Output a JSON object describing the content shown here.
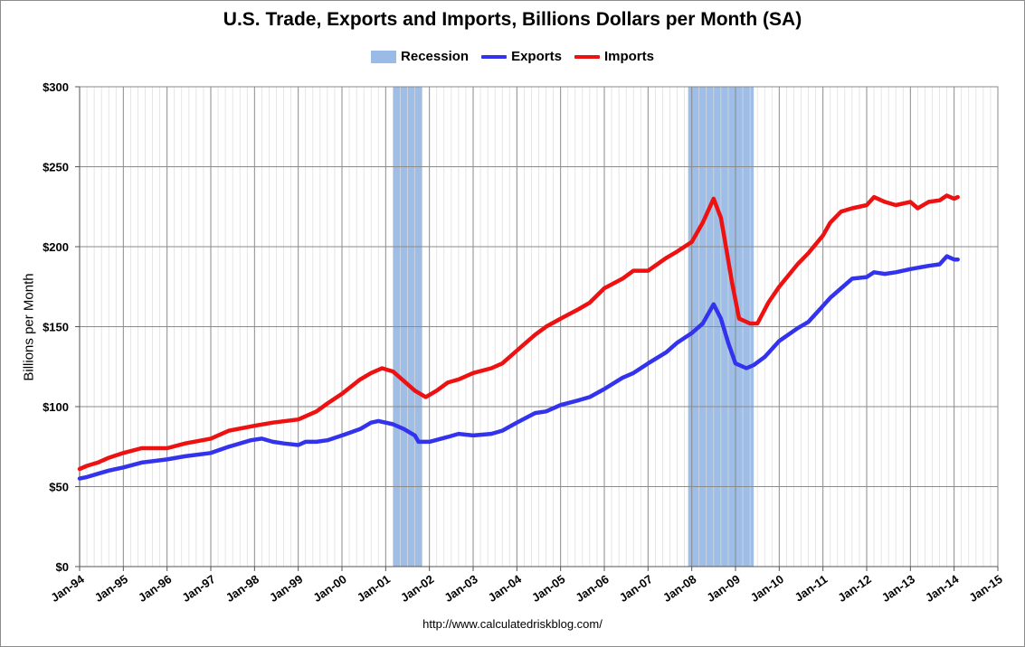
{
  "chart_data": {
    "type": "line",
    "title": "U.S. Trade, Exports and Imports, Billions Dollars per Month (SA)",
    "ylabel": "Billions per Month",
    "source": "http://www.calculatedriskblog.com/",
    "ylim": [
      0,
      300
    ],
    "yticks": [
      "$0",
      "$50",
      "$100",
      "$150",
      "$200",
      "$250",
      "$300"
    ],
    "ytick_values": [
      0,
      50,
      100,
      150,
      200,
      250,
      300
    ],
    "xlim": [
      "1994-01",
      "2015-01"
    ],
    "xticks": [
      "Jan-94",
      "Jan-95",
      "Jan-96",
      "Jan-97",
      "Jan-98",
      "Jan-99",
      "Jan-00",
      "Jan-01",
      "Jan-02",
      "Jan-03",
      "Jan-04",
      "Jan-05",
      "Jan-06",
      "Jan-07",
      "Jan-08",
      "Jan-09",
      "Jan-10",
      "Jan-11",
      "Jan-12",
      "Jan-13",
      "Jan-14",
      "Jan-15"
    ],
    "grid": true,
    "legend": "top",
    "recessions": [
      {
        "start": "2001-03",
        "end": "2001-11"
      },
      {
        "start": "2007-12",
        "end": "2009-06"
      }
    ],
    "series": [
      {
        "name": "Recession",
        "color": "#99bbe6"
      },
      {
        "name": "Exports",
        "color": "#3333ee",
        "points": [
          [
            "1994-01",
            55
          ],
          [
            "1994-03",
            56
          ],
          [
            "1994-06",
            58
          ],
          [
            "1994-09",
            60
          ],
          [
            "1995-01",
            62
          ],
          [
            "1995-06",
            65
          ],
          [
            "1996-01",
            67
          ],
          [
            "1996-06",
            69
          ],
          [
            "1997-01",
            71
          ],
          [
            "1997-06",
            75
          ],
          [
            "1997-12",
            79
          ],
          [
            "1998-03",
            80
          ],
          [
            "1998-06",
            78
          ],
          [
            "1998-09",
            77
          ],
          [
            "1999-01",
            76
          ],
          [
            "1999-03",
            78
          ],
          [
            "1999-06",
            78
          ],
          [
            "1999-09",
            79
          ],
          [
            "2000-01",
            82
          ],
          [
            "2000-06",
            86
          ],
          [
            "2000-09",
            90
          ],
          [
            "2000-11",
            91
          ],
          [
            "2001-01",
            90
          ],
          [
            "2001-03",
            89
          ],
          [
            "2001-06",
            86
          ],
          [
            "2001-09",
            82
          ],
          [
            "2001-10",
            78
          ],
          [
            "2002-01",
            78
          ],
          [
            "2002-06",
            81
          ],
          [
            "2002-09",
            83
          ],
          [
            "2003-01",
            82
          ],
          [
            "2003-06",
            83
          ],
          [
            "2003-09",
            85
          ],
          [
            "2004-01",
            90
          ],
          [
            "2004-06",
            96
          ],
          [
            "2004-09",
            97
          ],
          [
            "2005-01",
            101
          ],
          [
            "2005-06",
            104
          ],
          [
            "2005-09",
            106
          ],
          [
            "2006-01",
            111
          ],
          [
            "2006-06",
            118
          ],
          [
            "2006-09",
            121
          ],
          [
            "2007-01",
            127
          ],
          [
            "2007-06",
            134
          ],
          [
            "2007-09",
            140
          ],
          [
            "2008-01",
            146
          ],
          [
            "2008-04",
            152
          ],
          [
            "2008-07",
            164
          ],
          [
            "2008-09",
            155
          ],
          [
            "2008-11",
            140
          ],
          [
            "2009-01",
            127
          ],
          [
            "2009-04",
            124
          ],
          [
            "2009-06",
            126
          ],
          [
            "2009-09",
            131
          ],
          [
            "2010-01",
            141
          ],
          [
            "2010-06",
            149
          ],
          [
            "2010-09",
            153
          ],
          [
            "2011-01",
            163
          ],
          [
            "2011-03",
            168
          ],
          [
            "2011-06",
            174
          ],
          [
            "2011-09",
            180
          ],
          [
            "2012-01",
            181
          ],
          [
            "2012-03",
            184
          ],
          [
            "2012-06",
            183
          ],
          [
            "2012-09",
            184
          ],
          [
            "2013-01",
            186
          ],
          [
            "2013-06",
            188
          ],
          [
            "2013-09",
            189
          ],
          [
            "2013-11",
            194
          ],
          [
            "2014-01",
            192
          ],
          [
            "2014-02",
            192
          ]
        ]
      },
      {
        "name": "Imports",
        "color": "#ee1111",
        "points": [
          [
            "1994-01",
            61
          ],
          [
            "1994-03",
            63
          ],
          [
            "1994-06",
            65
          ],
          [
            "1994-09",
            68
          ],
          [
            "1995-01",
            71
          ],
          [
            "1995-06",
            74
          ],
          [
            "1996-01",
            74
          ],
          [
            "1996-06",
            77
          ],
          [
            "1997-01",
            80
          ],
          [
            "1997-06",
            85
          ],
          [
            "1998-01",
            88
          ],
          [
            "1998-06",
            90
          ],
          [
            "1999-01",
            92
          ],
          [
            "1999-06",
            97
          ],
          [
            "1999-09",
            102
          ],
          [
            "2000-01",
            108
          ],
          [
            "2000-06",
            117
          ],
          [
            "2000-09",
            121
          ],
          [
            "2000-12",
            124
          ],
          [
            "2001-03",
            122
          ],
          [
            "2001-06",
            116
          ],
          [
            "2001-09",
            110
          ],
          [
            "2001-12",
            106
          ],
          [
            "2002-03",
            110
          ],
          [
            "2002-06",
            115
          ],
          [
            "2002-09",
            117
          ],
          [
            "2003-01",
            121
          ],
          [
            "2003-06",
            124
          ],
          [
            "2003-09",
            127
          ],
          [
            "2004-01",
            135
          ],
          [
            "2004-06",
            145
          ],
          [
            "2004-09",
            150
          ],
          [
            "2005-01",
            155
          ],
          [
            "2005-06",
            161
          ],
          [
            "2005-09",
            165
          ],
          [
            "2006-01",
            174
          ],
          [
            "2006-06",
            180
          ],
          [
            "2006-09",
            185
          ],
          [
            "2007-01",
            185
          ],
          [
            "2007-06",
            193
          ],
          [
            "2007-09",
            197
          ],
          [
            "2008-01",
            203
          ],
          [
            "2008-04",
            215
          ],
          [
            "2008-07",
            230
          ],
          [
            "2008-09",
            218
          ],
          [
            "2008-10",
            205
          ],
          [
            "2008-12",
            178
          ],
          [
            "2009-02",
            155
          ],
          [
            "2009-05",
            152
          ],
          [
            "2009-07",
            152
          ],
          [
            "2009-10",
            165
          ],
          [
            "2010-01",
            175
          ],
          [
            "2010-06",
            189
          ],
          [
            "2010-09",
            196
          ],
          [
            "2011-01",
            207
          ],
          [
            "2011-03",
            215
          ],
          [
            "2011-06",
            222
          ],
          [
            "2011-09",
            224
          ],
          [
            "2012-01",
            226
          ],
          [
            "2012-03",
            231
          ],
          [
            "2012-06",
            228
          ],
          [
            "2012-09",
            226
          ],
          [
            "2013-01",
            228
          ],
          [
            "2013-03",
            224
          ],
          [
            "2013-06",
            228
          ],
          [
            "2013-09",
            229
          ],
          [
            "2013-11",
            232
          ],
          [
            "2014-01",
            230
          ],
          [
            "2014-02",
            231
          ]
        ]
      }
    ]
  }
}
